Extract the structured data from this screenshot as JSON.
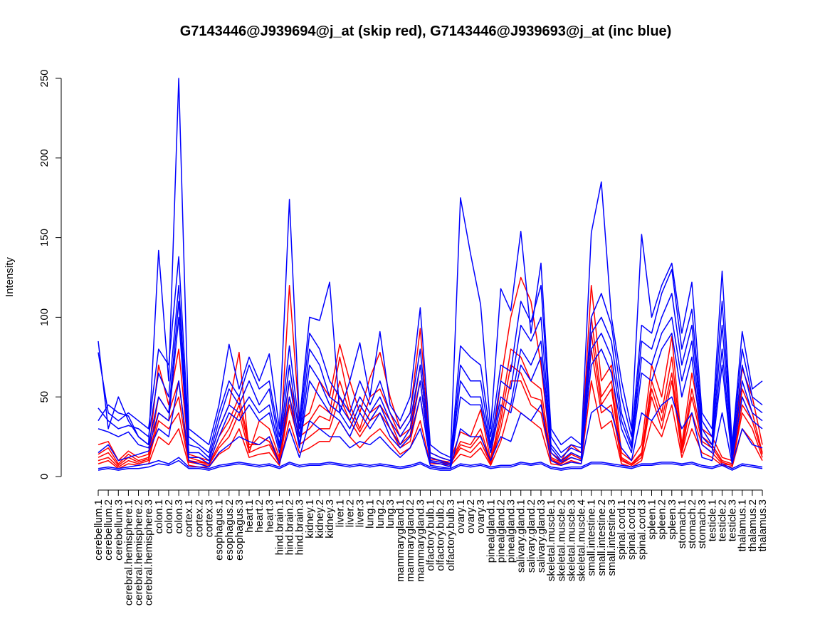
{
  "chart_data": {
    "type": "line",
    "title": "G7143446@J939694@j_at (skip red), G7143446@J939693@j_at (inc blue)",
    "xlabel": "",
    "ylabel": "Intensity",
    "ylim": [
      0,
      250
    ],
    "yticks": [
      0,
      50,
      100,
      150,
      200,
      250
    ],
    "grid": false,
    "legend": "none",
    "categories": [
      "cerebellum.1",
      "cerebellum.2",
      "cerebellum.3",
      "cerebral.hemisphere.1",
      "cerebral.hemisphere.2",
      "cerebral.hemisphere.3",
      "colon.1",
      "colon.2",
      "colon.3",
      "cortex.1",
      "cortex.2",
      "cortex.3",
      "esophagus.1",
      "esophagus.2",
      "esophagus.3",
      "heart.1",
      "heart.2",
      "heart.3",
      "hind.brain.1",
      "hind.brain.2",
      "hind.brain.3",
      "kidney.1",
      "kidney.2",
      "kidney.3",
      "liver.1",
      "liver.2",
      "liver.3",
      "lung.1",
      "lung.2",
      "lung.3",
      "mammarygland.1",
      "mammarygland.2",
      "mammarygland.3",
      "olfactory.bulb.1",
      "olfactory.bulb.2",
      "olfactory.bulb.3",
      "ovary.1",
      "ovary.2",
      "ovary.3",
      "pinealgland.1",
      "pinealgland.2",
      "pinealgland.3",
      "salivary.gland.1",
      "salivary.gland.2",
      "salivary.gland.3",
      "skeletal.muscle.1",
      "skeletal.muscle.2",
      "skeletal.muscle.3",
      "skeletal.muscle.4",
      "small.intestine.1",
      "small.intestine.2",
      "small.intestine.3",
      "spinal.cord.1",
      "spinal.cord.2",
      "spinal.cord.3",
      "spleen.1",
      "spleen.2",
      "spleen.3",
      "stomach.1",
      "stomach.2",
      "stomach.3",
      "testicle.1",
      "testicle.2",
      "testicle.3",
      "thalamus.1",
      "thalamus.2",
      "thalamus.3"
    ],
    "colors": {
      "skip": "#ff0000",
      "inc": "#0000ff"
    },
    "series": [
      {
        "group": "skip",
        "color": "#ff0000",
        "values": [
          20,
          22,
          10,
          16,
          12,
          14,
          70,
          45,
          80,
          14,
          12,
          10,
          30,
          45,
          78,
          15,
          35,
          30,
          12,
          120,
          35,
          40,
          60,
          50,
          83,
          60,
          40,
          62,
          78,
          50,
          30,
          40,
          93,
          15,
          12,
          10,
          28,
          25,
          42,
          10,
          60,
          100,
          125,
          110,
          70,
          15,
          10,
          20,
          15,
          120,
          60,
          70,
          15,
          10,
          20,
          70,
          50,
          88,
          20,
          65,
          30,
          25,
          12,
          10,
          68,
          50,
          20
        ]
      },
      {
        "group": "skip",
        "color": "#ff0000",
        "values": [
          14,
          18,
          8,
          14,
          10,
          12,
          50,
          40,
          60,
          12,
          10,
          8,
          25,
          35,
          50,
          20,
          20,
          25,
          10,
          60,
          30,
          35,
          45,
          40,
          75,
          45,
          30,
          50,
          55,
          40,
          25,
          30,
          70,
          12,
          10,
          9,
          22,
          20,
          30,
          9,
          40,
          80,
          75,
          60,
          55,
          12,
          9,
          15,
          12,
          100,
          50,
          60,
          12,
          8,
          15,
          60,
          40,
          75,
          18,
          55,
          25,
          20,
          10,
          8,
          55,
          40,
          15
        ]
      },
      {
        "group": "skip",
        "color": "#ff0000",
        "values": [
          10,
          12,
          6,
          10,
          8,
          10,
          35,
          30,
          40,
          9,
          8,
          7,
          18,
          25,
          40,
          15,
          18,
          20,
          8,
          45,
          20,
          25,
          30,
          30,
          50,
          35,
          25,
          35,
          40,
          30,
          18,
          22,
          50,
          10,
          9,
          8,
          18,
          15,
          22,
          8,
          30,
          60,
          60,
          45,
          40,
          10,
          8,
          12,
          10,
          80,
          40,
          45,
          10,
          7,
          12,
          50,
          30,
          60,
          15,
          40,
          20,
          15,
          8,
          7,
          40,
          30,
          12
        ]
      },
      {
        "group": "skip",
        "color": "#ff0000",
        "values": [
          8,
          10,
          5,
          8,
          7,
          8,
          25,
          20,
          30,
          7,
          6,
          6,
          14,
          18,
          30,
          12,
          14,
          15,
          7,
          35,
          15,
          18,
          22,
          22,
          35,
          25,
          18,
          25,
          30,
          22,
          14,
          18,
          35,
          8,
          8,
          7,
          14,
          12,
          18,
          7,
          22,
          45,
          40,
          35,
          30,
          8,
          7,
          10,
          8,
          60,
          30,
          35,
          8,
          6,
          10,
          35,
          25,
          45,
          12,
          30,
          15,
          12,
          7,
          6,
          30,
          22,
          10
        ]
      },
      {
        "group": "skip",
        "color": "#ff0000",
        "values": [
          12,
          15,
          7,
          12,
          9,
          11,
          40,
          35,
          50,
          10,
          9,
          8,
          20,
          30,
          45,
          18,
          25,
          22,
          9,
          50,
          25,
          30,
          38,
          35,
          60,
          40,
          28,
          40,
          45,
          35,
          20,
          26,
          60,
          11,
          10,
          8,
          20,
          18,
          26,
          8,
          35,
          70,
          65,
          50,
          48,
          11,
          8,
          14,
          11,
          90,
          45,
          55,
          11,
          7,
          14,
          55,
          35,
          65,
          16,
          50,
          22,
          18,
          9,
          7,
          45,
          35,
          14
        ]
      },
      {
        "group": "inc",
        "color": "#0000ff",
        "values": [
          85,
          30,
          50,
          35,
          25,
          20,
          142,
          60,
          250,
          30,
          25,
          20,
          45,
          83,
          55,
          75,
          60,
          77,
          30,
          174,
          35,
          100,
          98,
          122,
          40,
          60,
          84,
          50,
          91,
          45,
          35,
          50,
          106,
          20,
          15,
          12,
          175,
          140,
          108,
          30,
          118,
          104,
          154,
          90,
          134,
          30,
          20,
          25,
          20,
          153,
          185,
          100,
          60,
          30,
          152,
          100,
          120,
          134,
          90,
          122,
          40,
          30,
          129,
          20,
          91,
          55,
          60
        ]
      },
      {
        "group": "inc",
        "color": "#0000ff",
        "values": [
          78,
          40,
          35,
          40,
          35,
          30,
          80,
          70,
          138,
          25,
          20,
          15,
          40,
          60,
          50,
          70,
          55,
          60,
          25,
          82,
          30,
          90,
          80,
          60,
          50,
          40,
          60,
          45,
          60,
          40,
          30,
          40,
          80,
          15,
          12,
          10,
          82,
          75,
          70,
          25,
          70,
          66,
          110,
          97,
          120,
          25,
          15,
          20,
          18,
          100,
          115,
          95,
          50,
          25,
          95,
          90,
          115,
          130,
          80,
          105,
          35,
          25,
          110,
          18,
          80,
          50,
          45
        ]
      },
      {
        "group": "inc",
        "color": "#0000ff",
        "values": [
          43,
          35,
          30,
          32,
          30,
          25,
          65,
          50,
          120,
          20,
          18,
          12,
          35,
          55,
          45,
          60,
          45,
          55,
          20,
          70,
          25,
          80,
          70,
          50,
          45,
          35,
          50,
          40,
          50,
          35,
          25,
          35,
          70,
          12,
          10,
          8,
          70,
          60,
          60,
          20,
          60,
          55,
          95,
          85,
          100,
          20,
          12,
          18,
          15,
          90,
          100,
          85,
          40,
          20,
          85,
          80,
          100,
          115,
          70,
          95,
          30,
          20,
          95,
          15,
          70,
          45,
          40
        ]
      },
      {
        "group": "inc",
        "color": "#0000ff",
        "values": [
          35,
          45,
          40,
          38,
          25,
          20,
          50,
          40,
          110,
          15,
          15,
          10,
          30,
          45,
          40,
          50,
          40,
          45,
          18,
          60,
          20,
          70,
          60,
          45,
          40,
          30,
          45,
          35,
          45,
          30,
          20,
          30,
          60,
          10,
          9,
          7,
          60,
          50,
          50,
          18,
          50,
          45,
          80,
          70,
          85,
          18,
          10,
          15,
          12,
          80,
          90,
          75,
          35,
          18,
          75,
          70,
          90,
          100,
          60,
          85,
          25,
          18,
          80,
          12,
          60,
          40,
          35
        ]
      },
      {
        "group": "inc",
        "color": "#0000ff",
        "values": [
          30,
          28,
          25,
          28,
          20,
          18,
          40,
          35,
          100,
          12,
          12,
          8,
          25,
          40,
          35,
          45,
          35,
          40,
          15,
          50,
          18,
          60,
          50,
          40,
          35,
          25,
          40,
          30,
          40,
          25,
          18,
          25,
          50,
          9,
          8,
          6,
          50,
          45,
          45,
          15,
          45,
          40,
          70,
          60,
          75,
          15,
          9,
          12,
          10,
          70,
          80,
          65,
          30,
          15,
          65,
          60,
          80,
          90,
          50,
          75,
          20,
          15,
          70,
          10,
          50,
          35,
          30
        ]
      },
      {
        "group": "inc",
        "color": "#0000ff",
        "values": [
          5,
          6,
          5,
          6,
          7,
          8,
          10,
          8,
          12,
          6,
          6,
          5,
          7,
          8,
          9,
          8,
          7,
          8,
          6,
          9,
          7,
          8,
          8,
          9,
          8,
          7,
          8,
          7,
          8,
          7,
          6,
          7,
          9,
          6,
          5,
          5,
          8,
          7,
          8,
          6,
          7,
          7,
          9,
          8,
          9,
          6,
          5,
          6,
          6,
          9,
          9,
          8,
          7,
          6,
          8,
          8,
          9,
          9,
          8,
          9,
          7,
          6,
          8,
          5,
          8,
          7,
          6
        ]
      },
      {
        "group": "inc",
        "color": "#0000ff",
        "values": [
          4,
          5,
          4,
          5,
          5,
          6,
          8,
          7,
          10,
          5,
          5,
          4,
          6,
          7,
          8,
          7,
          6,
          7,
          5,
          8,
          6,
          7,
          7,
          8,
          7,
          6,
          7,
          6,
          7,
          6,
          5,
          6,
          8,
          5,
          4,
          4,
          7,
          6,
          7,
          5,
          6,
          6,
          8,
          7,
          8,
          5,
          4,
          5,
          5,
          8,
          8,
          7,
          6,
          5,
          7,
          7,
          8,
          8,
          7,
          8,
          6,
          5,
          7,
          4,
          7,
          6,
          5
        ]
      },
      {
        "group": "inc",
        "color": "#0000ff",
        "values": [
          15,
          20,
          10,
          12,
          14,
          16,
          30,
          25,
          60,
          10,
          8,
          6,
          15,
          20,
          25,
          22,
          20,
          25,
          8,
          30,
          12,
          35,
          30,
          25,
          25,
          18,
          22,
          20,
          25,
          18,
          12,
          18,
          30,
          7,
          6,
          5,
          30,
          25,
          25,
          10,
          25,
          22,
          40,
          35,
          45,
          10,
          7,
          9,
          8,
          40,
          45,
          40,
          18,
          10,
          40,
          35,
          45,
          50,
          30,
          40,
          12,
          10,
          40,
          8,
          30,
          20,
          18
        ]
      }
    ]
  }
}
